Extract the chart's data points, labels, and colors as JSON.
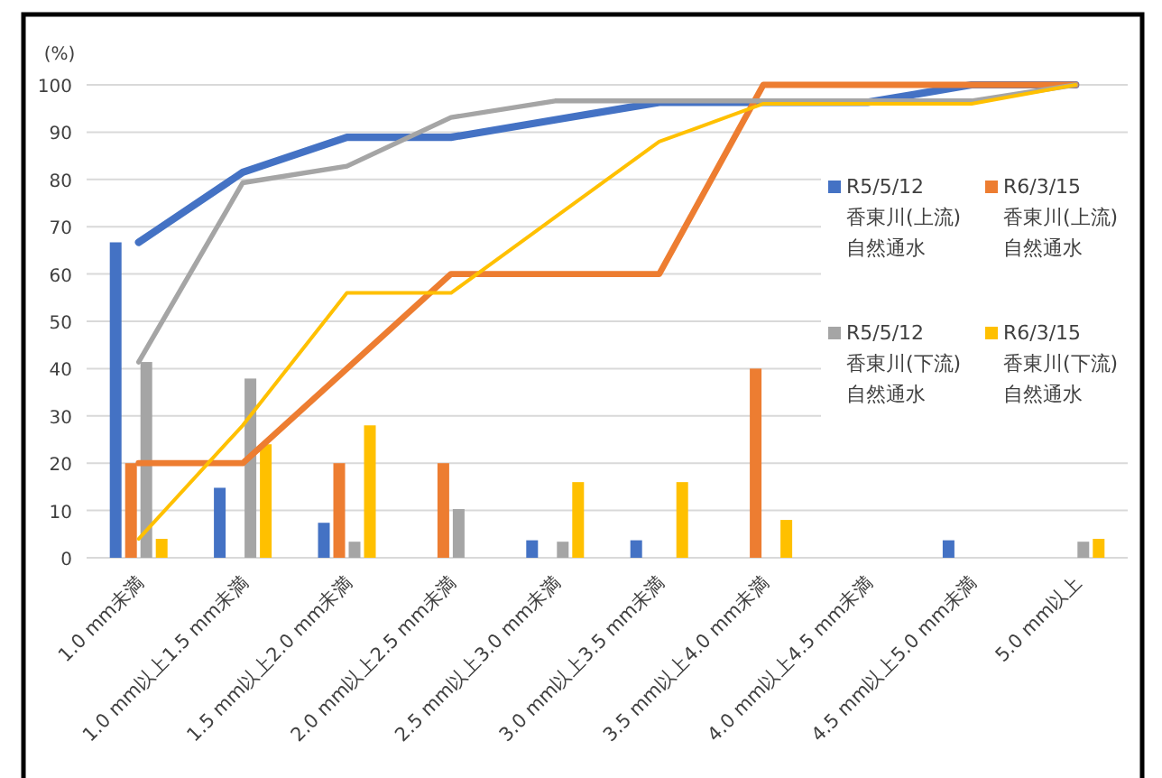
{
  "chart_data": {
    "type": "bar",
    "ylabel": "(%)",
    "categories": [
      "1.0 mm未満",
      "1.0 mm以上1.5 mm未満",
      "1.5 mm以上2.0 mm未満",
      "2.0 mm以上2.5 mm未満",
      "2.5 mm以上3.0 mm未満",
      "3.0 mm以上3.5 mm未満",
      "3.5 mm以上4.0 mm未満",
      "4.0 mm以上4.5 mm未満",
      "4.5 mm以上5.0 mm未満",
      "5.0 mm以上"
    ],
    "series": [
      {
        "name": "R5/5/12 香東川(上流) 自然通水",
        "color": "#4472c4",
        "values": [
          66.7,
          14.8,
          7.4,
          0,
          3.7,
          3.7,
          0,
          0,
          3.7,
          0
        ]
      },
      {
        "name": "R6/3/15 香東川(上流) 自然通水",
        "color": "#ed7d31",
        "values": [
          20,
          0,
          20,
          20,
          0,
          0,
          40,
          0,
          0,
          0
        ]
      },
      {
        "name": "R5/5/12 香東川(下流) 自然通水",
        "color": "#a5a5a5",
        "values": [
          41.4,
          37.9,
          3.4,
          10.3,
          3.4,
          0,
          0,
          0,
          0,
          3.4
        ]
      },
      {
        "name": "R6/3/15 香東川(下流) 自然通水",
        "color": "#ffc000",
        "values": [
          4,
          24,
          28,
          0,
          16,
          16,
          8,
          0,
          0,
          4
        ]
      },
      {
        "type": "line",
        "color": "#4472c4",
        "values": [
          66.7,
          81.5,
          88.9,
          88.9,
          92.6,
          96.3,
          96.3,
          96.3,
          100,
          100
        ]
      },
      {
        "type": "line",
        "color": "#ed7d31",
        "values": [
          20,
          20,
          40,
          60,
          60,
          60,
          100,
          100,
          100,
          100
        ]
      },
      {
        "type": "line",
        "color": "#a5a5a5",
        "values": [
          41.4,
          79.3,
          82.8,
          93.1,
          96.6,
          96.6,
          96.6,
          96.6,
          96.6,
          100
        ]
      },
      {
        "type": "line",
        "color": "#ffc000",
        "values": [
          4,
          28,
          56,
          56,
          72,
          88,
          96,
          96,
          96,
          100
        ]
      }
    ],
    "ylim": [
      0,
      100
    ],
    "yticks": [
      0,
      10,
      20,
      30,
      40,
      50,
      60,
      70,
      80,
      90,
      100
    ],
    "grid": "y",
    "legend": "right"
  }
}
